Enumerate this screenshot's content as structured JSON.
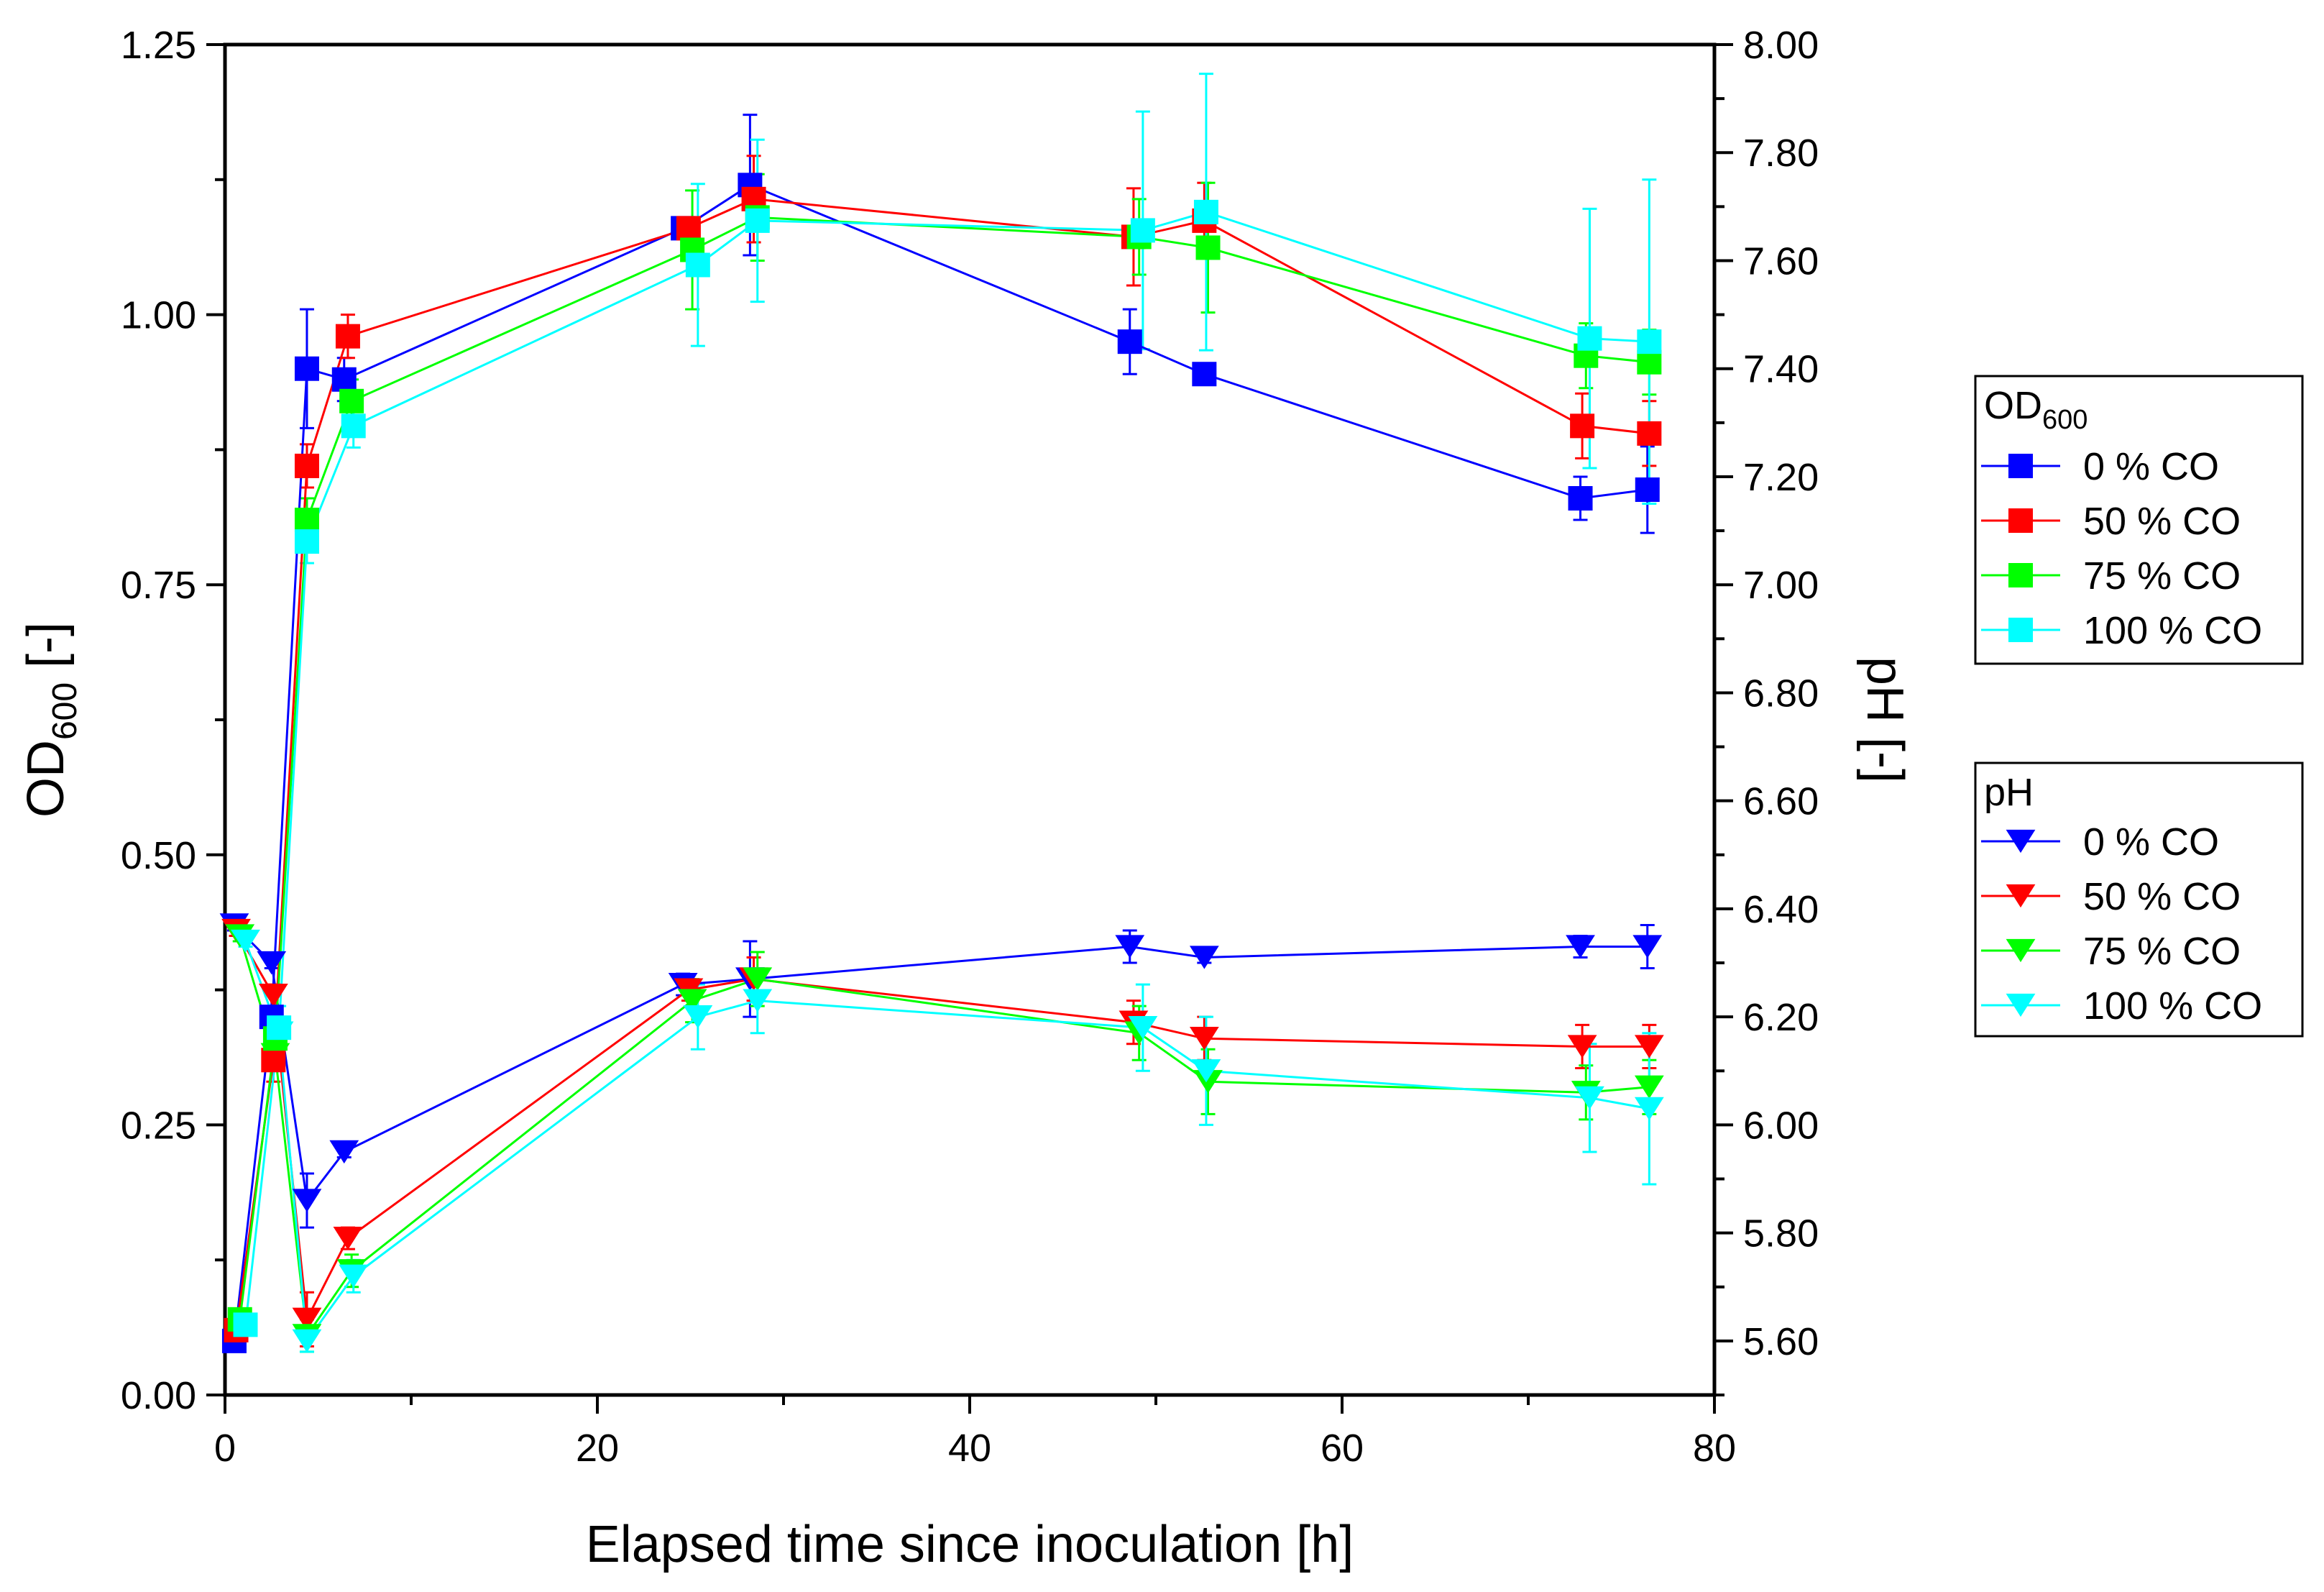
{
  "chart_data": {
    "type": "scatter",
    "x_axis": {
      "label": "Elapsed time since inoculation [h]",
      "range": [
        0,
        80
      ],
      "ticks": [
        0,
        20,
        40,
        60,
        80
      ],
      "tick_labels": [
        "0",
        "20",
        "40",
        "60",
        "80"
      ]
    },
    "y_left_axis": {
      "label_main": "OD",
      "label_sub": "600",
      "label_tail": " [-]",
      "range": [
        0,
        1.25
      ],
      "ticks": [
        0,
        0.25,
        0.5,
        0.75,
        1.0,
        1.25
      ],
      "tick_labels": [
        "0.00",
        "0.25",
        "0.50",
        "0.75",
        "1.00",
        "1.25"
      ]
    },
    "y_right_axis": {
      "label": "pH [-]",
      "range": [
        5.5,
        8.0
      ],
      "ticks": [
        5.6,
        5.8,
        6.0,
        6.2,
        6.4,
        6.6,
        6.8,
        7.0,
        7.2,
        7.4,
        7.6,
        7.8,
        8.0
      ],
      "tick_labels": [
        "5.60",
        "5.80",
        "6.00",
        "6.20",
        "6.40",
        "6.60",
        "6.80",
        "7.00",
        "7.20",
        "7.40",
        "7.60",
        "7.80",
        "8.00"
      ]
    },
    "legends": [
      {
        "title_main": "OD",
        "title_sub": "600",
        "marker": "square",
        "entries": [
          "0 % CO",
          "50 % CO",
          "75 % CO",
          "100 % CO"
        ]
      },
      {
        "title_main": "pH",
        "title_sub": "",
        "marker": "triangle-down",
        "entries": [
          "0 % CO",
          "50 % CO",
          "75 % CO",
          "100 % CO"
        ]
      }
    ],
    "od_series": [
      {
        "name": "0 % CO",
        "color": "#0000ff",
        "axis": "left",
        "x": [
          0.5,
          2.5,
          4.4,
          6.4,
          24.6,
          28.2,
          48.6,
          52.6,
          72.8,
          76.4
        ],
        "y": [
          0.05,
          0.35,
          0.95,
          0.94,
          1.08,
          1.12,
          0.975,
          0.945,
          0.83,
          0.838
        ],
        "err": [
          0.01,
          0.02,
          0.055,
          0.02,
          0.01,
          0.065,
          0.03,
          0.008,
          0.02,
          0.04
        ]
      },
      {
        "name": "50 % CO",
        "color": "#ff0000",
        "axis": "left",
        "x": [
          0.6,
          2.6,
          4.4,
          6.6,
          24.9,
          28.4,
          48.8,
          52.6,
          72.9,
          76.5
        ],
        "y": [
          0.06,
          0.31,
          0.86,
          0.98,
          1.08,
          1.107,
          1.072,
          1.087,
          0.897,
          0.89
        ],
        "err": [
          0.01,
          0.02,
          0.02,
          0.02,
          0.01,
          0.04,
          0.045,
          0.035,
          0.03,
          0.03
        ]
      },
      {
        "name": "75 % CO",
        "color": "#00ff00",
        "axis": "left",
        "x": [
          0.8,
          2.7,
          4.4,
          6.8,
          25.1,
          28.6,
          49.1,
          52.8,
          73.1,
          76.5
        ],
        "y": [
          0.07,
          0.33,
          0.81,
          0.92,
          1.06,
          1.09,
          1.072,
          1.062,
          0.962,
          0.956
        ],
        "err": [
          0.01,
          0.02,
          0.02,
          0.02,
          0.055,
          0.04,
          0.035,
          0.06,
          0.03,
          0.03
        ]
      },
      {
        "name": "100 % CO",
        "color": "#00ffff",
        "axis": "left",
        "x": [
          1.1,
          2.9,
          4.4,
          6.9,
          25.4,
          28.6,
          49.3,
          52.7,
          73.3,
          76.5
        ],
        "y": [
          0.065,
          0.34,
          0.79,
          0.897,
          1.046,
          1.087,
          1.078,
          1.095,
          0.978,
          0.975
        ],
        "err": [
          0.01,
          0.02,
          0.02,
          0.02,
          0.075,
          0.075,
          0.11,
          0.128,
          0.12,
          0.15
        ]
      }
    ],
    "ph_series": [
      {
        "name": "0 % CO",
        "color": "#0000ff",
        "axis": "right",
        "x": [
          0.5,
          2.5,
          4.4,
          6.4,
          24.6,
          28.2,
          48.6,
          52.6,
          72.8,
          76.4
        ],
        "y": [
          6.37,
          6.3,
          5.86,
          5.95,
          6.26,
          6.27,
          6.33,
          6.31,
          6.33,
          6.33
        ],
        "err": [
          0.01,
          0.01,
          0.05,
          0.01,
          0.02,
          0.07,
          0.03,
          0.01,
          0.02,
          0.04
        ]
      },
      {
        "name": "50 % CO",
        "color": "#ff0000",
        "axis": "right",
        "x": [
          0.6,
          2.6,
          4.4,
          6.6,
          24.9,
          28.4,
          48.8,
          52.6,
          72.9,
          76.5
        ],
        "y": [
          6.36,
          6.24,
          5.64,
          5.79,
          6.25,
          6.27,
          6.19,
          6.16,
          6.145,
          6.145
        ],
        "err": [
          0.01,
          0.02,
          0.05,
          0.02,
          0.02,
          0.04,
          0.04,
          0.04,
          0.04,
          0.04
        ]
      },
      {
        "name": "75 % CO",
        "color": "#00ff00",
        "axis": "right",
        "x": [
          0.8,
          2.7,
          4.4,
          6.8,
          25.1,
          28.6,
          49.1,
          52.8,
          73.1,
          76.5
        ],
        "y": [
          6.35,
          6.13,
          5.61,
          5.73,
          6.23,
          6.27,
          6.17,
          6.08,
          6.06,
          6.07
        ],
        "err": [
          0.01,
          0.02,
          0.03,
          0.03,
          0.04,
          0.05,
          0.05,
          0.06,
          0.05,
          0.05
        ]
      },
      {
        "name": "100 % CO",
        "color": "#00ffff",
        "axis": "right",
        "x": [
          1.1,
          2.9,
          4.4,
          6.9,
          25.4,
          28.6,
          49.3,
          52.7,
          73.3,
          76.5
        ],
        "y": [
          6.34,
          6.17,
          5.6,
          5.72,
          6.2,
          6.23,
          6.18,
          6.1,
          6.05,
          6.03
        ],
        "err": [
          0.01,
          0.02,
          0.02,
          0.03,
          0.06,
          0.06,
          0.08,
          0.1,
          0.1,
          0.14
        ]
      }
    ]
  }
}
